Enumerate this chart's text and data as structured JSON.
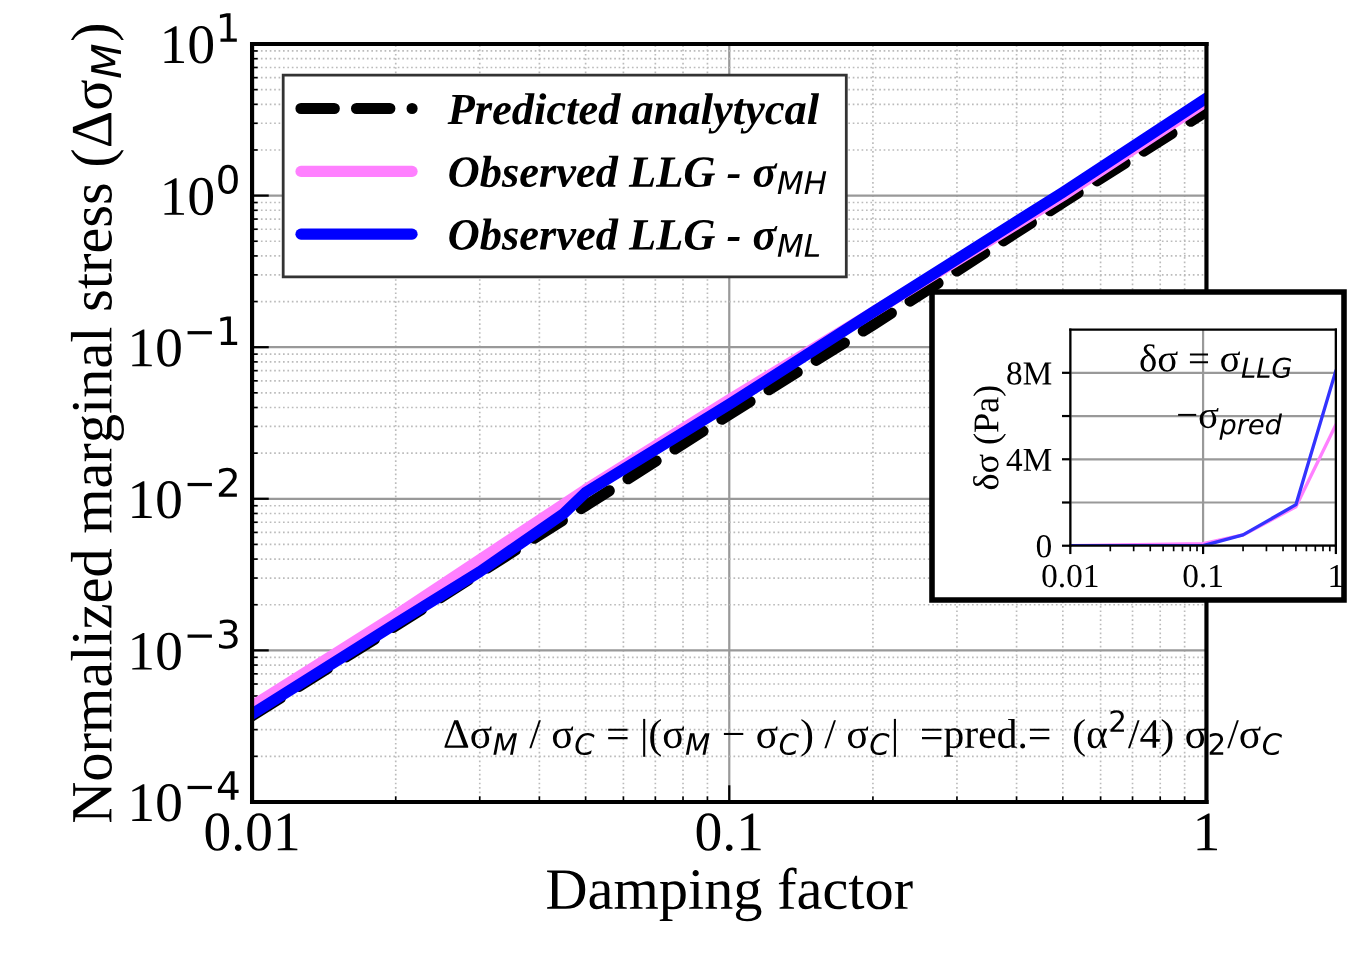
{
  "chart_data": [
    {
      "type": "line",
      "xlabel": "Damping factor",
      "ylabel": "Normalized marginal stress (Δσ$_{M}$)",
      "log": "xy",
      "grid": true,
      "legend": "top left",
      "xlim": [
        0.01,
        1
      ],
      "xticks": [
        0.01,
        0.1,
        1
      ],
      "ylim": [
        0.0001,
        10
      ],
      "yticks": [
        {
          "value": 0.0001,
          "label": "10$^{−4}$"
        },
        {
          "value": 0.001,
          "label": "10$^{−3}$"
        },
        {
          "value": 0.01,
          "label": "10$^{−2}$"
        },
        {
          "value": 0.1,
          "label": "10$^{−1}$"
        },
        {
          "value": 1,
          "label": "10$^{0}$"
        },
        {
          "value": 10,
          "label": "10$^{1}$"
        }
      ],
      "series": [
        {
          "name": "Predicted analytycal",
          "color": "#000000",
          "line_style": "dashed",
          "x": [
            0.01,
            0.02,
            0.05,
            0.1,
            0.2,
            0.5,
            1
          ],
          "values": [
            0.00037,
            0.00145,
            0.009,
            0.036,
            0.14,
            0.9,
            3.6
          ]
        },
        {
          "name": "Observed LLG - σ$_{MH}$",
          "color": "#ff80ff",
          "line_style": "solid",
          "x": [
            0.01,
            0.02,
            0.05,
            0.1,
            0.2,
            0.5,
            1
          ],
          "values": [
            0.00043,
            0.0017,
            0.0115,
            0.045,
            0.17,
            1.0,
            4.2
          ]
        },
        {
          "name": "Observed LLG - σ$_{ML}$",
          "color": "#0000ff",
          "line_style": "solid",
          "x": [
            0.01,
            0.02,
            0.03,
            0.045,
            0.05,
            0.1,
            0.2,
            0.5,
            1
          ],
          "values": [
            0.00038,
            0.0015,
            0.0033,
            0.008,
            0.011,
            0.042,
            0.17,
            1.05,
            4.4
          ]
        }
      ],
      "annotations": [
        "Δσ$_{M}$ / σ$_{C}$ = |(σ$_{M}$ − σ$_{C}$) / σ$_{C}$|  =pred.=  (α$^{2}$/4) σ$_{2}$/σ$_{C}$"
      ]
    },
    {
      "type": "line",
      "ylabel": "δσ (Pa)",
      "log": "x",
      "grid": true,
      "xlim": [
        0.01,
        1
      ],
      "xticks": [
        0.01,
        0.1,
        1
      ],
      "ylim": [
        0,
        10000000
      ],
      "yticks": [
        {
          "value": 0,
          "label": "0"
        },
        {
          "value": 2000000,
          "label": null
        },
        {
          "value": 4000000,
          "label": "4M"
        },
        {
          "value": 6000000,
          "label": null
        },
        {
          "value": 8000000,
          "label": "8M"
        }
      ],
      "series": [
        {
          "color": "#ff80ff",
          "x": [
            0.01,
            0.1,
            0.2,
            0.5,
            1
          ],
          "values": [
            0,
            100000,
            500000,
            1800000,
            5600000
          ]
        },
        {
          "color": "#3333ff",
          "x": [
            0.01,
            0.1,
            0.2,
            0.5,
            1
          ],
          "values": [
            0,
            0,
            500000,
            1900000,
            8100000
          ]
        }
      ],
      "annotations": [
        "δσ = σ$_{LLG}$",
        "−σ$_{pred}$"
      ]
    }
  ]
}
